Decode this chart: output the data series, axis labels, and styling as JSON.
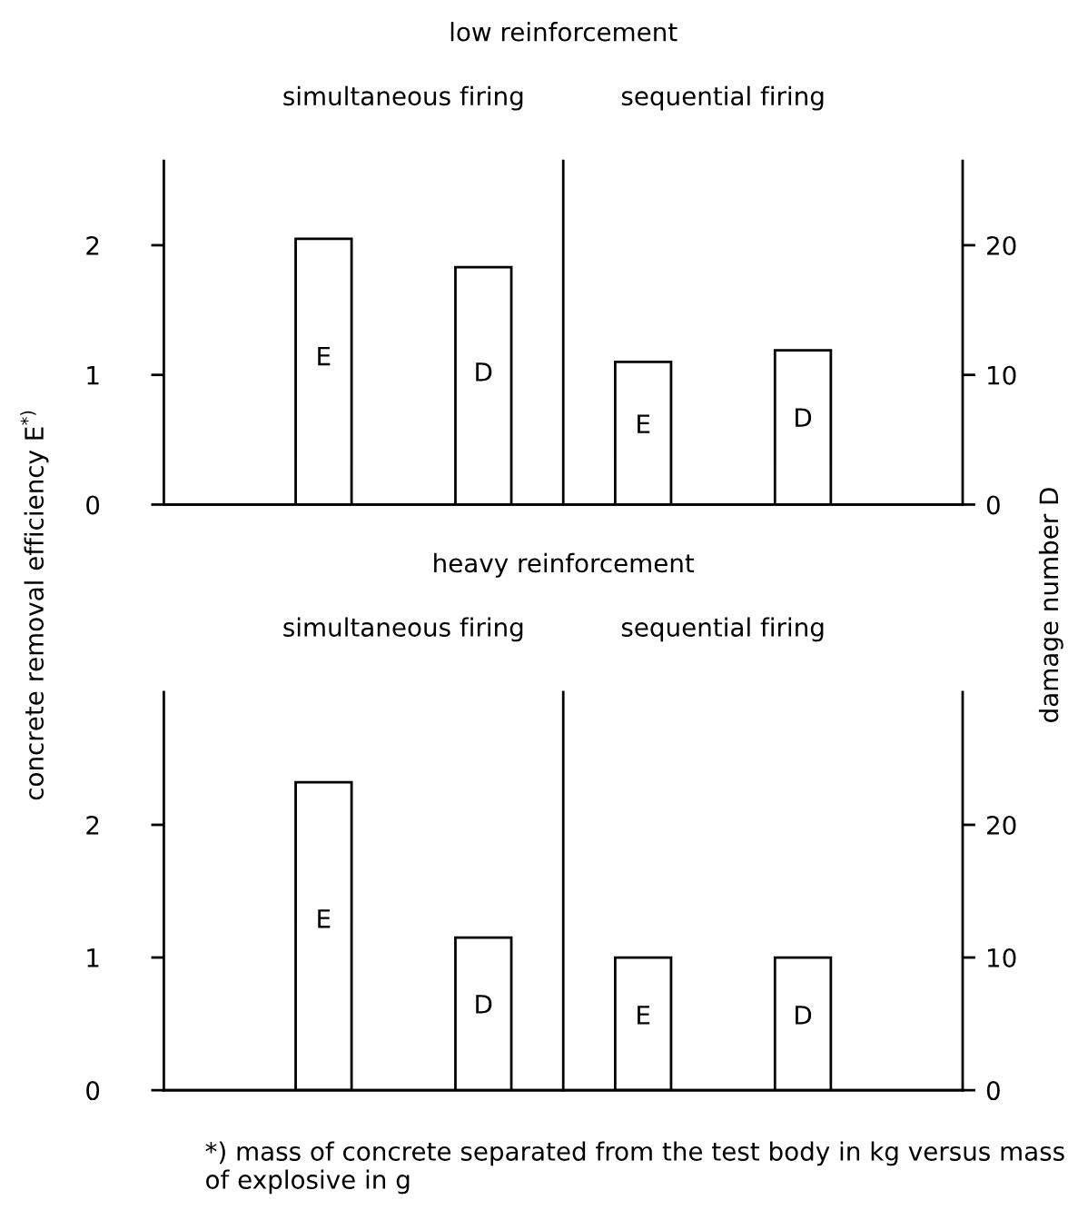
{
  "chart_data": [
    {
      "type": "bar",
      "title": "low reinforcement",
      "annotations": [
        "simultaneous firing",
        "sequential firing"
      ],
      "ylabel": "concrete removal efficiency E$^{*)}$",
      "y2label": "damage number D",
      "categories": [
        null,
        null,
        null,
        null
      ],
      "ylim": [
        0,
        2.65
      ],
      "yticks": [
        0,
        1,
        2
      ],
      "y2lim": [
        0,
        26.5
      ],
      "y2ticks": [
        0,
        10,
        20
      ],
      "series": [
        {
          "name": "E",
          "color": "#ffffff",
          "values": [
            2.05,
            null,
            1.1,
            null
          ]
        },
        {
          "name": "D",
          "color": "#ffffff",
          "axis": "y2",
          "values": [
            null,
            18.3,
            null,
            11.9
          ]
        }
      ]
    },
    {
      "type": "bar",
      "title": "heavy reinforcement",
      "annotations": [
        "simultaneous firing",
        "sequential firing",
        "*) mass of concrete separated from the test body in kg versus mass of explosive in g"
      ],
      "categories": [
        null,
        null,
        null,
        null
      ],
      "ylim": [
        0,
        3.0
      ],
      "yticks": [
        0,
        1,
        2
      ],
      "y2lim": [
        0,
        30
      ],
      "y2ticks": [
        0,
        10,
        20
      ],
      "series": [
        {
          "name": "E",
          "color": "#ffffff",
          "values": [
            2.32,
            null,
            1.0,
            null
          ]
        },
        {
          "name": "D",
          "color": "#ffffff",
          "axis": "y2",
          "values": [
            null,
            11.5,
            null,
            10.0
          ]
        }
      ]
    }
  ]
}
